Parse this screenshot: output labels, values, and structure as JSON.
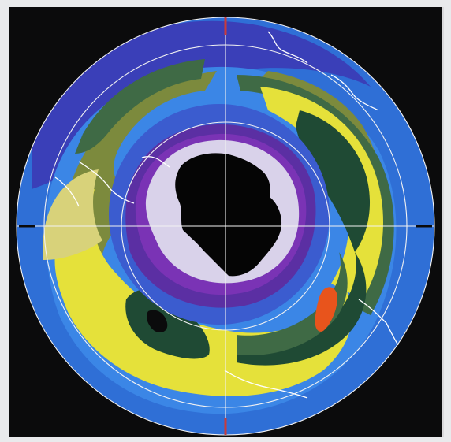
{
  "map": {
    "colors": {
      "frame": "#0b0b0c",
      "outer_blue": "#2f6fd6",
      "light_blue": "#3b86e6",
      "indigo": "#3a3fb8",
      "purple": "#5b2fa3",
      "violet": "#7a33b5",
      "lavender": "#d9d2ea",
      "core": "#050505",
      "green_dark": "#3f6a45",
      "green_deep": "#1f4a34",
      "olive": "#7c8a3d",
      "yellow": "#e5e13a",
      "yellow_pale": "#d8d27a",
      "orange": "#e8541c",
      "grid": "#f2f2f2",
      "coast": "#ffffff"
    }
  }
}
